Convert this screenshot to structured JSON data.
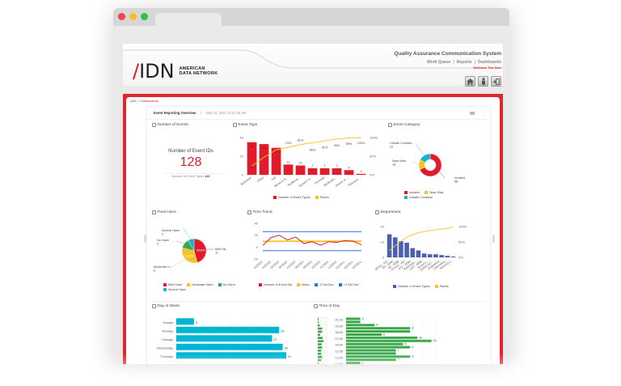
{
  "browser": {
    "window_controls": [
      "close",
      "minimize",
      "maximize"
    ]
  },
  "header": {
    "logo_mark": "IDN",
    "logo_text_line1": "AMERICAN",
    "logo_text_line2": "DATA NETWORK",
    "system_title": "Quality Assurance Communication System",
    "nav": [
      "Work Queue",
      "Reports",
      "Dashboards"
    ],
    "welcome": "Welcome Test User",
    "icons": [
      "home-icon",
      "user-icon",
      "logout-icon"
    ]
  },
  "breadcrumb": {
    "root": "QAC",
    "separator": ">",
    "current": "Dashboards"
  },
  "dashboard": {
    "tab_label": "Event Reporting Overview",
    "timestamp": "Mar 22, 2021 10:01:40 AM"
  },
  "cards": {
    "number_of_events": {
      "title": "Number of Events",
      "label": "Number of Event IDs",
      "value": "128",
      "sub_label": "Number of Event Types",
      "sub_value": "145"
    },
    "event_type": {
      "title": "Event Type"
    },
    "event_category": {
      "title": "Event Category"
    },
    "final_harm": {
      "title": "Final Harm"
    },
    "time_trend": {
      "title": "Time Trend"
    },
    "department": {
      "title": "Department"
    },
    "day_of_week": {
      "title": "Day of Week"
    },
    "time_of_day": {
      "title": "Time of Day"
    }
  },
  "chart_data": [
    {
      "id": "event_type",
      "type": "bar",
      "title": "Event Type",
      "categories": [
        "Specimen",
        "Other",
        "Fall",
        "Blood or B...",
        "Healthcar...",
        "Surgery or...",
        "Perinatal",
        "Medicatio...",
        "Device or ...",
        "Pressure ..."
      ],
      "series": [
        {
          "name": "Number of Event Types",
          "values": [
            35,
            33,
            29,
            11,
            10,
            7,
            7,
            7,
            5,
            1
          ],
          "color": "#e11b2b"
        },
        {
          "name": "Pareto",
          "values": [
            24,
            47,
            67,
            74,
            81,
            86,
            91,
            96,
            99,
            100
          ],
          "color": "#f7c325",
          "axis": "right"
        }
      ],
      "bar_labels": [
        "35",
        "33",
        "29",
        "11",
        "10",
        "7",
        "7",
        "7",
        "5",
        "1"
      ],
      "pareto_labels": [
        "24%",
        "",
        "",
        "74%",
        "81%",
        "86%",
        "91%",
        "96%",
        "99%",
        "100%"
      ],
      "ylim": [
        0,
        40
      ],
      "yticks": [
        0,
        20,
        40
      ],
      "y2ticks": [
        "0%",
        "50%",
        "100%"
      ],
      "legend": [
        "Number of Event Types",
        "Pareto"
      ]
    },
    {
      "id": "event_category",
      "type": "pie",
      "title": "Event Category",
      "categories": [
        "Incident",
        "Near Miss",
        "Unsafe Condition"
      ],
      "values": [
        88,
        18,
        22
      ],
      "slice_labels": [
        "Incident\n88",
        "Near Miss\n18",
        "Unsafe Conditio...\n22"
      ],
      "colors": [
        "#e11b2b",
        "#f7c325",
        "#1ab0d0"
      ],
      "donut": true,
      "legend": [
        "Incident",
        "Near Miss",
        "Unsafe Condition"
      ]
    },
    {
      "id": "final_harm",
      "type": "pie",
      "title": "Final Harm",
      "categories": [
        "Mild Harm",
        "Moderate Harm",
        "No Harm",
        "Severe Harm"
      ],
      "values": [
        11,
        8,
        3,
        2
      ],
      "percent_labels": [
        "45.8%",
        "33.3%",
        "",
        ""
      ],
      "slice_labels": [
        "Mild Ha...\n11",
        "Moderate H...\n8",
        "No Harm\n3",
        "Severe Harm\n2"
      ],
      "colors": [
        "#e11b2b",
        "#f7c325",
        "#3aa84a",
        "#1ab0d0"
      ],
      "legend": [
        "Mild Harm",
        "Moderate Harm",
        "No Harm",
        "Severe Harm"
      ]
    },
    {
      "id": "time_trend",
      "type": "line",
      "title": "Time Trend",
      "x": [
        "03/2020",
        "04/2020",
        "05/2020",
        "06/2020",
        "07/2020",
        "08/2020",
        "09/2020",
        "10/2020",
        "11/2020",
        "12/2020",
        "01/2021",
        "02/2021",
        "03/2021"
      ],
      "series": [
        {
          "name": "Number of Event IDs",
          "values": [
            3,
            16,
            20,
            12,
            17,
            6,
            9,
            3,
            9,
            8,
            11,
            10,
            4
          ],
          "color": "#e11b2b"
        },
        {
          "name": "Mean",
          "values": [
            9.8,
            9.8,
            9.8,
            9.8,
            9.8,
            9.8,
            9.8,
            9.8,
            9.8,
            9.8,
            9.8,
            9.8,
            9.8
          ],
          "color": "#f7c325"
        },
        {
          "name": "-3 Std Dev",
          "values": [
            -6,
            -6,
            -6,
            -6,
            -6,
            -6,
            -6,
            -6,
            -6,
            -6,
            -6,
            -6,
            -6
          ],
          "color": "#2f6fe0"
        },
        {
          "name": "+3 Std Dev",
          "values": [
            26,
            26,
            26,
            26,
            26,
            26,
            26,
            26,
            26,
            26,
            26,
            26,
            26
          ],
          "color": "#2f6fe0"
        }
      ],
      "ylim": [
        -20,
        40
      ],
      "yticks": [
        -20,
        0,
        20,
        40
      ],
      "legend": [
        "Number of Event IDs",
        "Mean",
        "-3 Std Dev",
        "+3 Std Dev"
      ]
    },
    {
      "id": "department",
      "type": "bar",
      "title": "Department",
      "categories": [
        "Emergency - AD...",
        "3N - ADM...",
        "2E - ADM...",
        "CVICU - AD...",
        "ICU - ADM...",
        "Radiology -...",
        "L&D - ADM...",
        "Nursery -...",
        "SURG EC - ...",
        "Outpatient...",
        "Laboratory...",
        "Nursing Li..."
      ],
      "series": [
        {
          "name": "Number of Event Types",
          "values": [
            30,
            26,
            21,
            19,
            12,
            9,
            5,
            4,
            4,
            3,
            2,
            1
          ],
          "color": "#4a5fb0"
        },
        {
          "name": "Pareto",
          "values": [
            21,
            38,
            53,
            66,
            74,
            80,
            84,
            87,
            90,
            92,
            94,
            100
          ],
          "color": "#f7c325",
          "axis": "right"
        }
      ],
      "ylim": [
        0,
        40
      ],
      "yticks": [
        0,
        20,
        40
      ],
      "y2ticks": [
        "0%",
        "50%",
        "100%"
      ],
      "legend": [
        "Number of Event Types",
        "Pareto"
      ]
    },
    {
      "id": "day_of_week",
      "type": "bar",
      "orientation": "horizontal",
      "title": "Day of Week",
      "categories": [
        "Sunday",
        "Monday",
        "Tuesday",
        "Wednesday",
        "Thursday"
      ],
      "values": [
        5,
        29,
        27,
        30,
        31
      ],
      "color": "#00b6d2"
    },
    {
      "id": "time_of_day",
      "type": "bar",
      "orientation": "horizontal",
      "title": "Time of Day",
      "tick_labels": [
        "01:00",
        "03:00",
        "05:00",
        "07:00",
        "09:00",
        "11:00",
        "13:00",
        "15:00"
      ],
      "categories": [
        "00:00",
        "01:00",
        "02:00",
        "03:00",
        "04:00",
        "05:00",
        "06:00",
        "07:00",
        "08:00",
        "09:00",
        "10:00",
        "11:00",
        "12:00",
        "13:00",
        "14:00",
        "15:00"
      ],
      "values": [
        2,
        2,
        4,
        9,
        9,
        5,
        10,
        12,
        8,
        9,
        7,
        7,
        9,
        7,
        2,
        2
      ],
      "value_labels": [
        "2",
        "",
        "4",
        "9",
        "",
        "5",
        "10",
        "12",
        "8",
        "9",
        "7",
        "",
        "9",
        "7",
        "2",
        ""
      ],
      "color": "#3aa84a"
    }
  ]
}
